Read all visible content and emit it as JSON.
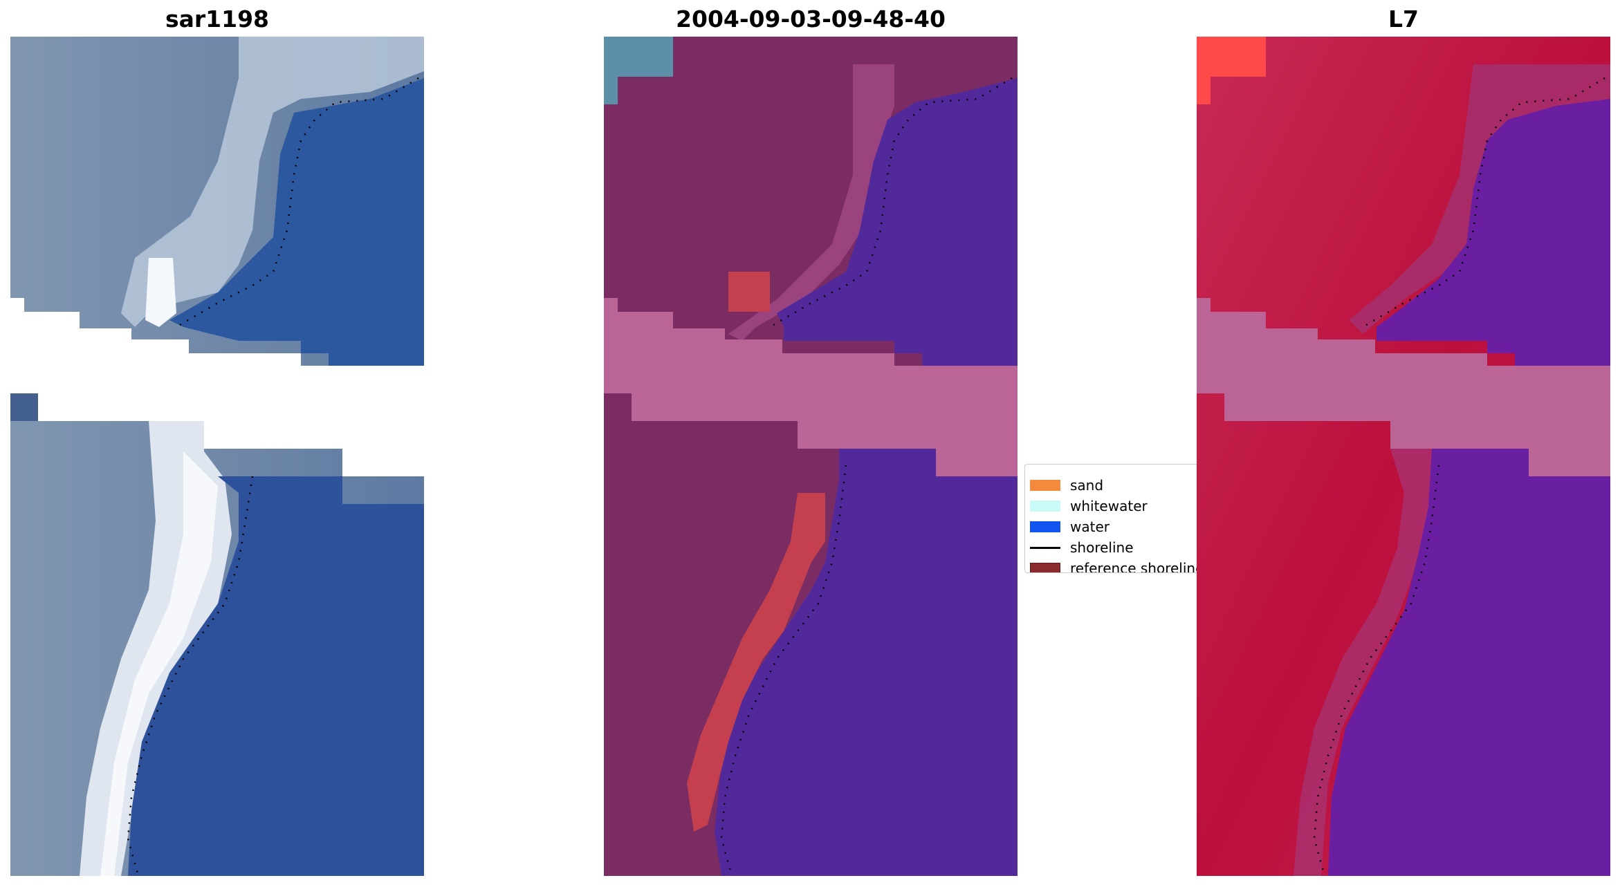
{
  "panels": {
    "left": {
      "title": "sar1198"
    },
    "middle": {
      "title": "2004-09-03-09-48-40"
    },
    "right": {
      "title": "L7"
    }
  },
  "legend": {
    "items": [
      {
        "label": "sand",
        "kind": "patch",
        "color": "#f58a3c"
      },
      {
        "label": "whitewater",
        "kind": "patch",
        "color": "#c8fbf8"
      },
      {
        "label": "water",
        "kind": "patch",
        "color": "#1254f0"
      },
      {
        "label": "shoreline",
        "kind": "line",
        "color": "#000000"
      },
      {
        "label": "reference shoreline",
        "kind": "patch",
        "color": "#8b2a2e"
      }
    ]
  },
  "colors": {
    "rgb_land": "#6f89a8",
    "rgb_whitewater": "#e8eef6",
    "rgb_water": "#2c58a0",
    "class_land": "#7b2c63",
    "class_water": "#52299a",
    "class_cloudmask": "#bb6597",
    "class_reference": "#c4404e",
    "class_corner": "#5b8fa8",
    "ndwi_land": "#bf1f4a",
    "ndwi_water": "#6a1fa2",
    "ndwi_mask": "#bb6597",
    "ndwi_corner": "#ff4a4a"
  }
}
